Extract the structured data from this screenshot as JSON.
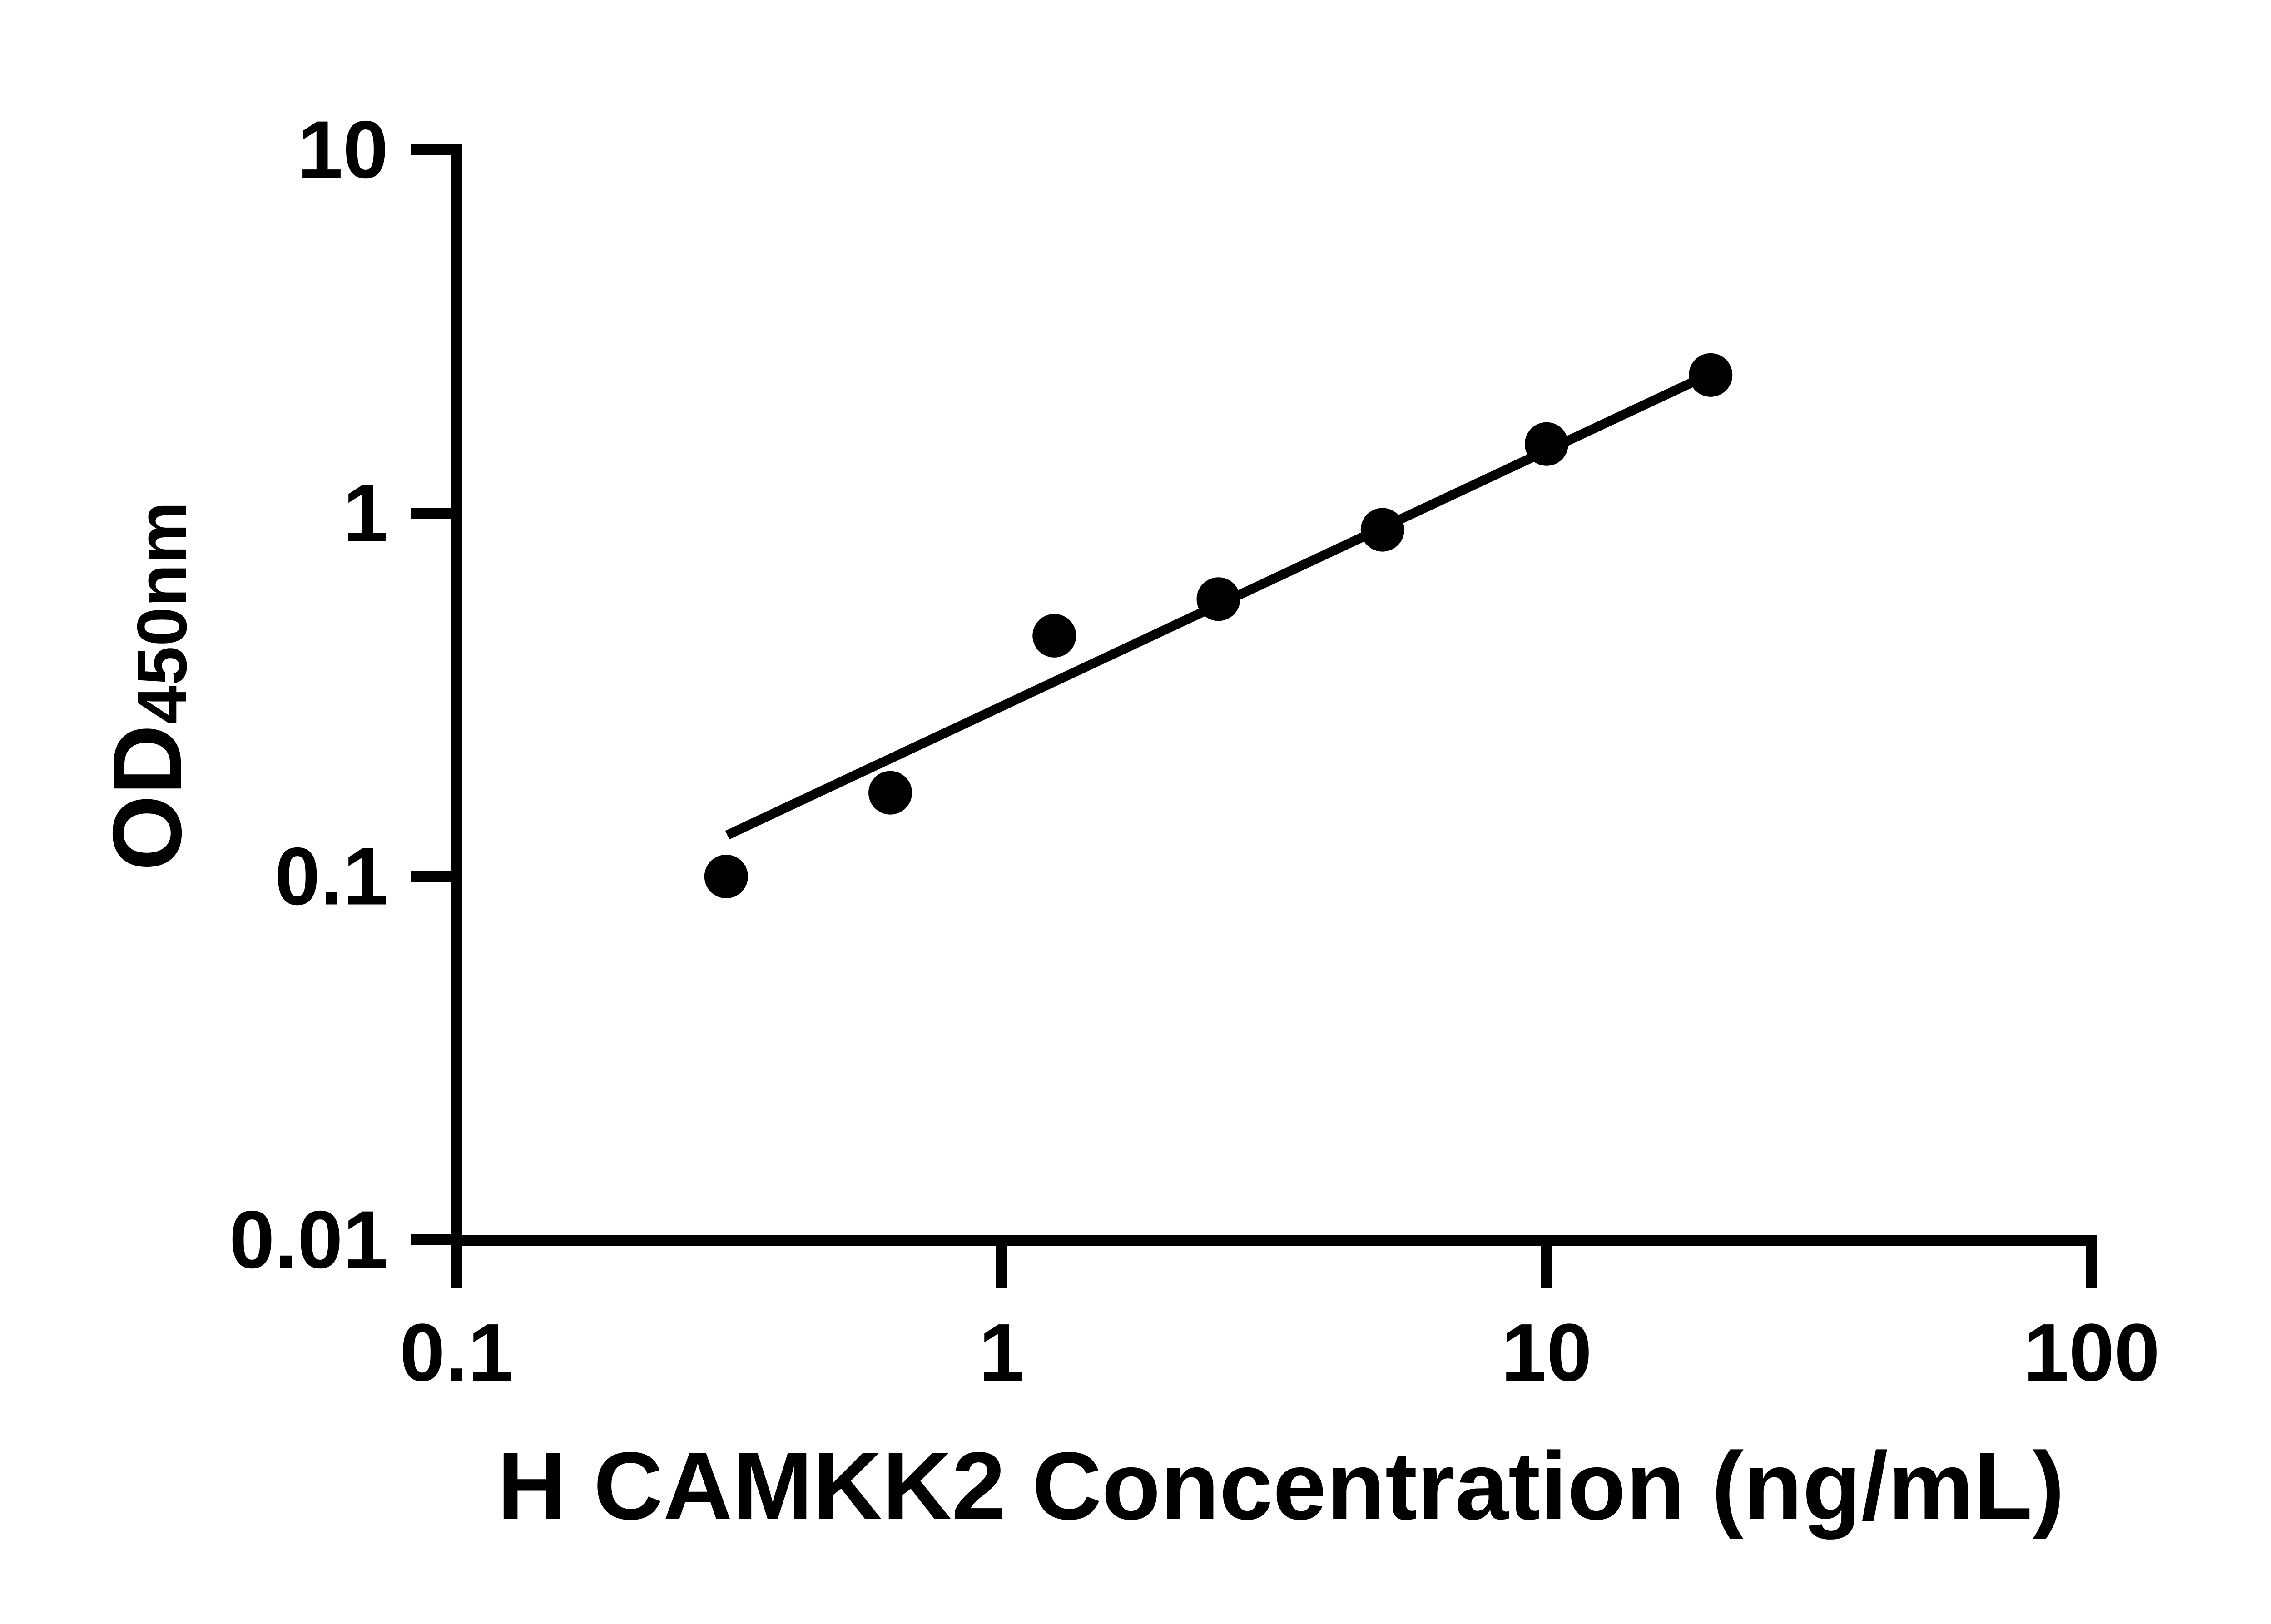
{
  "chart": {
    "background": "#ffffff",
    "ink_color": "#000000"
  },
  "chart_data": {
    "type": "scatter",
    "title": "",
    "grid": false,
    "legend": null,
    "x_axis": {
      "label": "H CAMKK2 Concentration (ng/mL)",
      "scale": "log",
      "range": [
        0.1,
        100
      ],
      "ticks": [
        0.1,
        1,
        10,
        100
      ],
      "tick_labels": [
        "0.1",
        "1",
        "10",
        "100"
      ]
    },
    "y_axis": {
      "label": "OD450nm",
      "label_main": "OD",
      "label_subscript": "450nm",
      "scale": "log",
      "range": [
        0.01,
        10
      ],
      "ticks": [
        10,
        1,
        0.1,
        0.01
      ],
      "tick_labels": [
        "10",
        "1",
        "0.1",
        "0.01"
      ]
    },
    "series": [
      {
        "name": "standard-curve-points",
        "marker": "circle",
        "color": "#000000",
        "points": [
          {
            "x": 0.3125,
            "y": 0.1
          },
          {
            "x": 0.625,
            "y": 0.17
          },
          {
            "x": 1.25,
            "y": 0.46
          },
          {
            "x": 2.5,
            "y": 0.58
          },
          {
            "x": 5,
            "y": 0.9
          },
          {
            "x": 10,
            "y": 1.55
          },
          {
            "x": 20,
            "y": 2.4
          }
        ]
      }
    ],
    "trend_line": {
      "x1": 0.314,
      "y1": 0.13,
      "x2": 20,
      "y2": 2.42
    }
  }
}
